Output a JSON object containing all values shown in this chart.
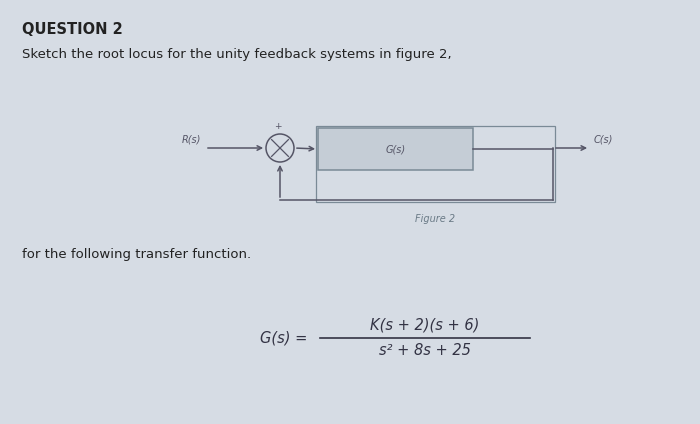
{
  "title": "QUESTION 2",
  "subtitle": "Sketch the root locus for the unity feedback systems in figure 2,",
  "body_text": "for the following transfer function.",
  "figure_label": "Figure 2",
  "Rs_label": "R(s)",
  "Gs_label": "G(s)",
  "Cs_label": "C(s)",
  "formula_left": "G(s) = ",
  "formula_numerator": "K(s + 2)(s + 6)",
  "formula_denominator": "s² + 8s + 25",
  "bg_color": "#d6dce4",
  "block_bg": "#c5cdd6",
  "block_border": "#7a8a96",
  "text_color": "#222222",
  "diagram_line_color": "#555566",
  "fig_label_color": "#6a7a86",
  "formula_color": "#333344"
}
